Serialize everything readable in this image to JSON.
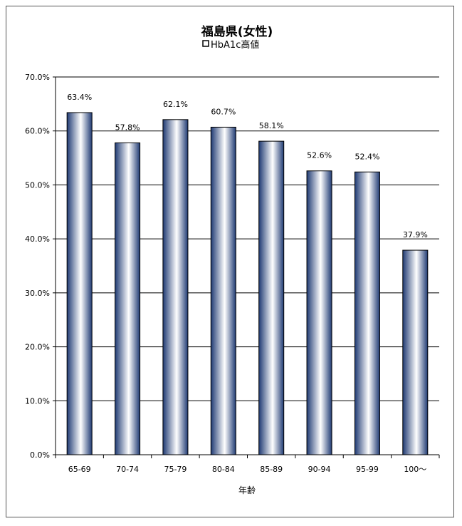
{
  "chart_data": {
    "type": "bar",
    "title": "福島県(女性)",
    "legend": [
      "HbA1c高値"
    ],
    "xlabel": "年齢",
    "categories": [
      "65-69",
      "70-74",
      "75-79",
      "80-84",
      "85-89",
      "90-94",
      "95-99",
      "100〜"
    ],
    "series": [
      {
        "name": "HbA1c高値",
        "values": [
          63.4,
          57.8,
          62.1,
          60.7,
          58.1,
          52.6,
          52.4,
          37.9
        ]
      }
    ],
    "data_labels": [
      "63.4%",
      "57.8%",
      "62.1%",
      "60.7%",
      "58.1%",
      "52.6%",
      "52.4%",
      "37.9%"
    ],
    "yticks": [
      "0.0%",
      "10.0%",
      "20.0%",
      "30.0%",
      "40.0%",
      "50.0%",
      "60.0%",
      "70.0%"
    ],
    "ylim": [
      0,
      70
    ],
    "grid": true,
    "legend_position": "top-center"
  }
}
